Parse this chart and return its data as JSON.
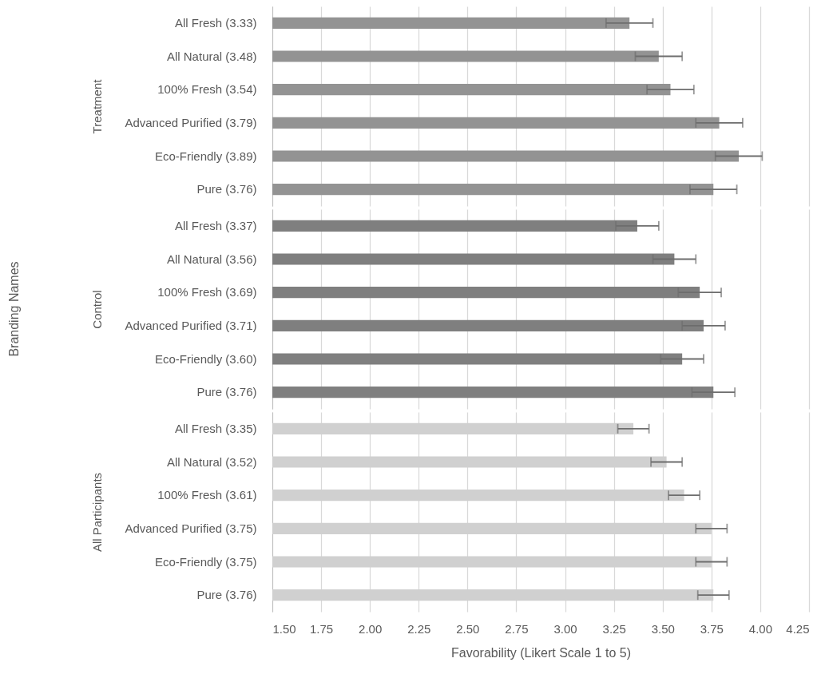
{
  "chart_data": [
    {
      "type": "bar",
      "orientation": "horizontal",
      "ylabel": "Treatment",
      "categories": [
        "All Fresh (3.33)",
        "All Natural (3.48)",
        "100% Fresh (3.54)",
        "Advanced Purified (3.79)",
        "Eco-Friendly (3.89)",
        "Pure (3.76)"
      ],
      "values": [
        3.33,
        3.48,
        3.54,
        3.79,
        3.89,
        3.76
      ],
      "errors": [
        0.12,
        0.12,
        0.12,
        0.12,
        0.12,
        0.12
      ],
      "color": "#939393",
      "xlim": [
        1.5,
        4.25
      ],
      "xticks": [
        {
          "value": 1.5,
          "label": null
        },
        {
          "value": 1.75,
          "label": null
        },
        {
          "value": 2.0,
          "label": null
        },
        {
          "value": 2.25,
          "label": null
        },
        {
          "value": 2.5,
          "label": null
        },
        {
          "value": 2.75,
          "label": null
        },
        {
          "value": 3.0,
          "label": null
        },
        {
          "value": 3.25,
          "label": null
        },
        {
          "value": 3.5,
          "label": null
        },
        {
          "value": 3.75,
          "label": null
        },
        {
          "value": 4.0,
          "label": null
        },
        {
          "value": 4.25,
          "label": null
        }
      ],
      "grid": "x",
      "tick_labels": "y"
    },
    {
      "type": "bar",
      "orientation": "horizontal",
      "ylabel": "Control",
      "annotations": [
        "Branding Names"
      ],
      "categories": [
        "All Fresh (3.37)",
        "All Natural (3.56)",
        "100% Fresh (3.69)",
        "Advanced Purified (3.71)",
        "Eco-Friendly (3.60)",
        "Pure (3.76)"
      ],
      "values": [
        3.37,
        3.56,
        3.69,
        3.71,
        3.6,
        3.76
      ],
      "errors": [
        0.11,
        0.11,
        0.11,
        0.11,
        0.11,
        0.11
      ],
      "color": "#7f7f7f",
      "xlim": [
        1.5,
        4.25
      ],
      "xticks": [
        {
          "value": 1.5,
          "label": null
        },
        {
          "value": 1.75,
          "label": null
        },
        {
          "value": 2.0,
          "label": null
        },
        {
          "value": 2.25,
          "label": null
        },
        {
          "value": 2.5,
          "label": null
        },
        {
          "value": 2.75,
          "label": null
        },
        {
          "value": 3.0,
          "label": null
        },
        {
          "value": 3.25,
          "label": null
        },
        {
          "value": 3.5,
          "label": null
        },
        {
          "value": 3.75,
          "label": null
        },
        {
          "value": 4.0,
          "label": null
        },
        {
          "value": 4.25,
          "label": null
        }
      ],
      "grid": "x",
      "tick_labels": "y"
    },
    {
      "type": "bar",
      "orientation": "horizontal",
      "ylabel": "All Participants",
      "xlabel": "Favorability (Likert Scale 1 to 5)",
      "categories": [
        "All Fresh (3.35)",
        "All Natural (3.52)",
        "100% Fresh (3.61)",
        "Advanced Purified (3.75)",
        "Eco-Friendly (3.75)",
        "Pure (3.76)"
      ],
      "values": [
        3.35,
        3.52,
        3.61,
        3.75,
        3.75,
        3.76
      ],
      "errors": [
        0.08,
        0.08,
        0.08,
        0.08,
        0.08,
        0.08
      ],
      "color": "#d0d0d0",
      "xlim": [
        1.5,
        4.25
      ],
      "xticks": [
        {
          "value": 1.5,
          "label": "1.50"
        },
        {
          "value": 1.75,
          "label": "1.75"
        },
        {
          "value": 2.0,
          "label": "2.00"
        },
        {
          "value": 2.25,
          "label": "2.25"
        },
        {
          "value": 2.5,
          "label": "2.50"
        },
        {
          "value": 2.75,
          "label": "2.75"
        },
        {
          "value": 3.0,
          "label": "3.00"
        },
        {
          "value": 3.25,
          "label": "3.25"
        },
        {
          "value": 3.5,
          "label": "3.50"
        },
        {
          "value": 3.75,
          "label": "3.75"
        },
        {
          "value": 4.0,
          "label": "4.00"
        },
        {
          "value": 4.25,
          "label": "4.25"
        }
      ],
      "grid": "x"
    }
  ]
}
